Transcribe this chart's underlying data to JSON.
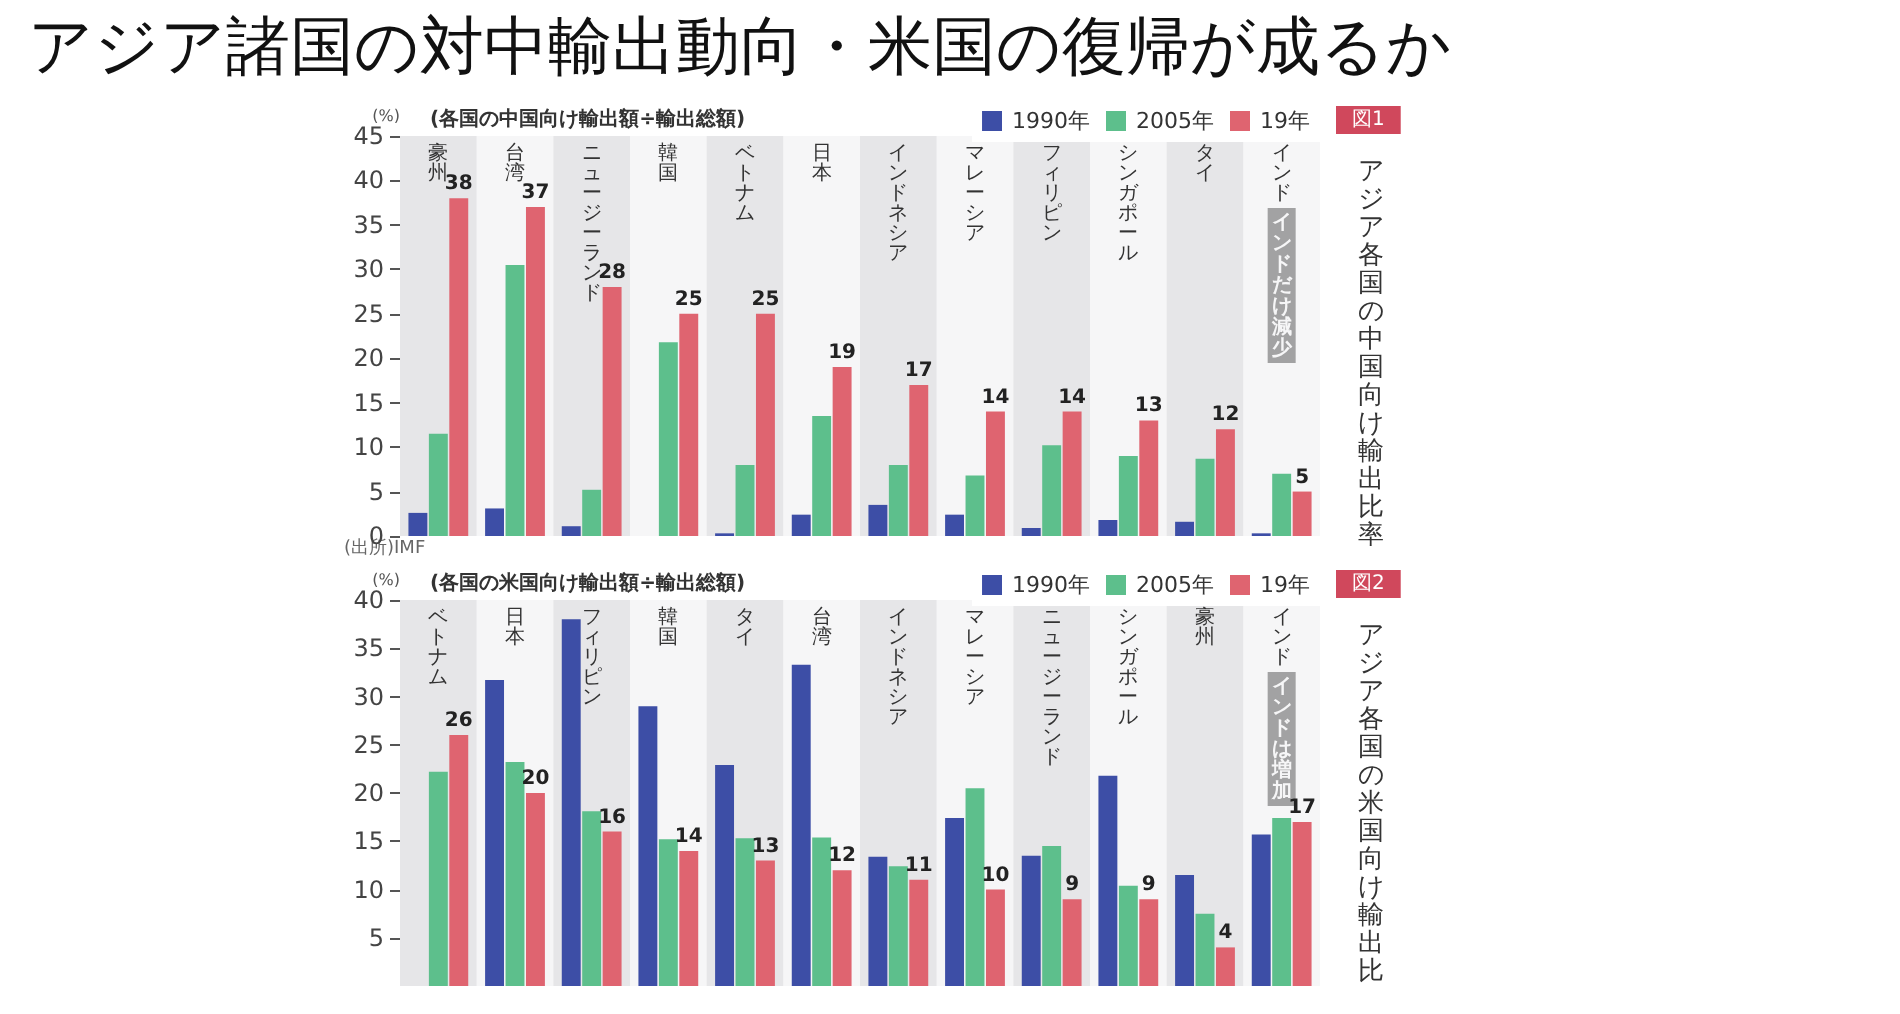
{
  "chart_data": [
    {
      "type": "bar",
      "title": "アジア各国の中国向け輸出比率",
      "subtitle": "(各国の中国向け輸出額÷輸出総額)",
      "ylabel": "(%)",
      "categories": [
        "豪州",
        "台湾",
        "ニュージーランド",
        "韓国",
        "ベトナム",
        "日本",
        "インドネシア",
        "マレーシア",
        "フィリピン",
        "シンガポール",
        "タイ",
        "インド"
      ],
      "series": [
        {
          "name": "1990年",
          "color": "#3d4ea6",
          "values": [
            2.6,
            3.1,
            1.1,
            0,
            0.3,
            2.4,
            3.5,
            2.4,
            0.9,
            1.8,
            1.6,
            0.3
          ]
        },
        {
          "name": "2005年",
          "color": "#5dbf8c",
          "values": [
            11.5,
            30.5,
            5.2,
            21.8,
            8,
            13.5,
            8,
            6.8,
            10.2,
            9,
            8.7,
            7
          ]
        },
        {
          "name": "19年",
          "color": "#df6470",
          "values": [
            38,
            37,
            28,
            25,
            25,
            19,
            17,
            14,
            14,
            13,
            12,
            5
          ],
          "value_labels": [
            "38",
            "37",
            "28",
            "25",
            "25",
            "19",
            "17",
            "14",
            "14",
            "13",
            "12",
            "5"
          ]
        }
      ],
      "ylim": [
        0,
        45
      ],
      "yticks": [
        0,
        5,
        10,
        15,
        20,
        25,
        30,
        35,
        40,
        45
      ],
      "grid": false,
      "legend": "top right",
      "annotations": [
        "図1",
        "インドだけ減少",
        "(出所)IMF",
        "アジア諸国の対中輸出動向・米国の復帰が成るか"
      ]
    },
    {
      "type": "bar",
      "title": "アジア各国の米国向け輸出比",
      "subtitle": "(各国の米国向け輸出額÷輸出総額)",
      "ylabel": "(%)",
      "categories": [
        "ベトナム",
        "日本",
        "フィリピン",
        "韓国",
        "タイ",
        "台湾",
        "インドネシア",
        "マレーシア",
        "ニュージーランド",
        "シンガポール",
        "豪州",
        "インド"
      ],
      "series": [
        {
          "name": "1990年",
          "color": "#3d4ea6",
          "values": [
            null,
            31.7,
            38,
            29,
            22.9,
            33.3,
            13.4,
            17.4,
            13.5,
            21.8,
            11.5,
            15.7
          ]
        },
        {
          "name": "2005年",
          "color": "#5dbf8c",
          "values": [
            22.2,
            23.2,
            18.1,
            15.2,
            15.3,
            15.4,
            12.4,
            20.5,
            14.5,
            10.4,
            7.5,
            17.4
          ]
        },
        {
          "name": "19年",
          "color": "#df6470",
          "values": [
            26,
            20,
            16,
            14,
            13,
            12,
            11,
            10,
            9,
            9,
            4,
            17
          ],
          "value_labels": [
            "26",
            "20",
            "16",
            "14",
            "13",
            "12",
            "11",
            "10",
            "9",
            "9",
            "4",
            "17"
          ]
        }
      ],
      "ylim": [
        0,
        40
      ],
      "yticks": [
        5,
        10,
        15,
        20,
        25,
        30,
        35,
        40
      ],
      "grid": false,
      "legend": "top right",
      "annotations": [
        "図2",
        "インドは増加"
      ]
    }
  ]
}
